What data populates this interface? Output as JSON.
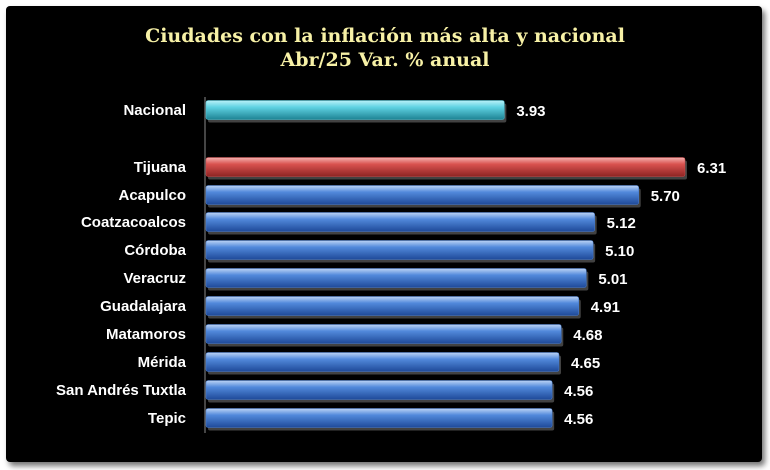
{
  "chart_data": {
    "type": "bar",
    "orientation": "horizontal",
    "title": [
      "Ciudades con la inflación más alta y nacional",
      "Abr/25  Var. % anual"
    ],
    "categories": [
      "Nacional",
      "Tijuana",
      "Acapulco",
      "Coatzacoalcos",
      "Córdoba",
      "Veracruz",
      "Guadalajara",
      "Matamoros",
      "Mérida",
      "San Andrés Tuxtla",
      "Tepic"
    ],
    "values": [
      3.93,
      6.31,
      5.7,
      5.12,
      5.1,
      5.01,
      4.91,
      4.68,
      4.65,
      4.56,
      4.56
    ],
    "value_labels": [
      "3.93",
      "6.31",
      "5.70",
      "5.12",
      "5.10",
      "5.01",
      "4.91",
      "4.68",
      "4.65",
      "4.56",
      "4.56"
    ],
    "bar_colors": [
      "#4fc4d6",
      "#c9494a",
      "#4a7fd0",
      "#4a7fd0",
      "#4a7fd0",
      "#4a7fd0",
      "#4a7fd0",
      "#4a7fd0",
      "#4a7fd0",
      "#4a7fd0",
      "#4a7fd0"
    ],
    "xlim": [
      0,
      6.5
    ],
    "xlabel": "",
    "ylabel": "",
    "grid": false,
    "legend": "none"
  }
}
